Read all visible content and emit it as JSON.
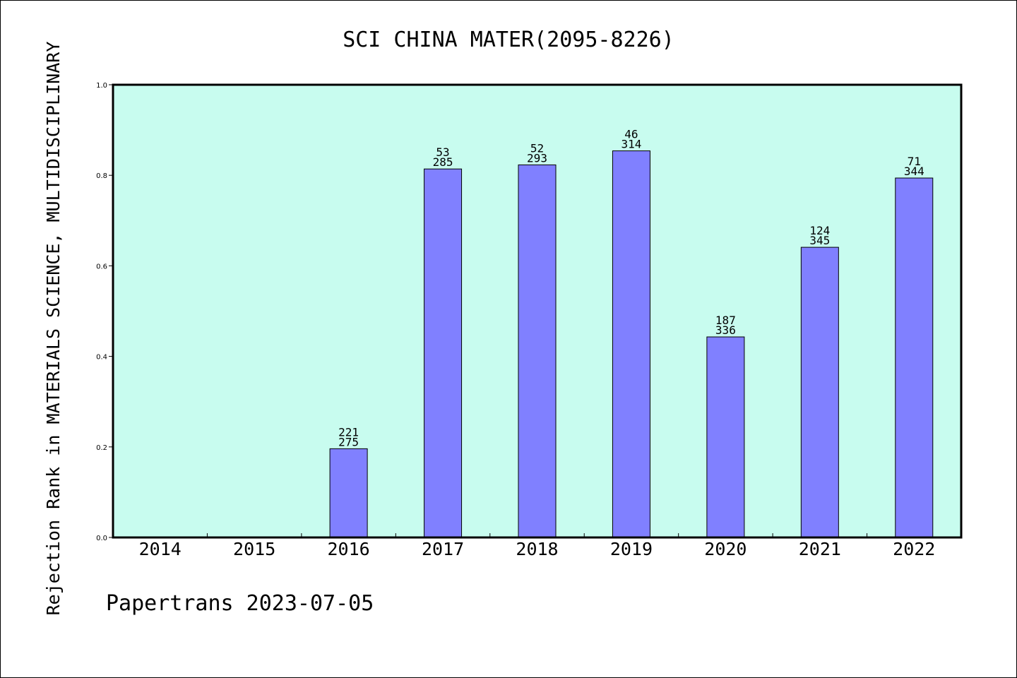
{
  "chart_data": {
    "type": "bar",
    "title": "SCI CHINA MATER(2095-8226)",
    "ylabel": "Rejection Rank in MATERIALS SCIENCE, MULTIDISCIPLINARY",
    "xlabel": "",
    "categories": [
      "2014",
      "2015",
      "2016",
      "2017",
      "2018",
      "2019",
      "2020",
      "2021",
      "2022"
    ],
    "values": [
      null,
      null,
      0.196,
      0.814,
      0.823,
      0.854,
      0.443,
      0.641,
      0.794
    ],
    "bar_labels": [
      null,
      null,
      {
        "top": "221",
        "bottom": "275"
      },
      {
        "top": "53",
        "bottom": "285"
      },
      {
        "top": "52",
        "bottom": "293"
      },
      {
        "top": "46",
        "bottom": "314"
      },
      {
        "top": "187",
        "bottom": "336"
      },
      {
        "top": "124",
        "bottom": "345"
      },
      {
        "top": "71",
        "bottom": "344"
      }
    ],
    "ylim": [
      0,
      1.0
    ],
    "yticks": [
      "0.0",
      "0.2",
      "0.4",
      "0.6",
      "0.8",
      "1.0"
    ],
    "grid": false,
    "colors": {
      "plot_background": "#c8fcef",
      "bar_fill": "#8080ff",
      "bar_edge": "#000000",
      "axis": "#000000"
    }
  },
  "footer": {
    "text": "Papertrans 2023-07-05"
  }
}
